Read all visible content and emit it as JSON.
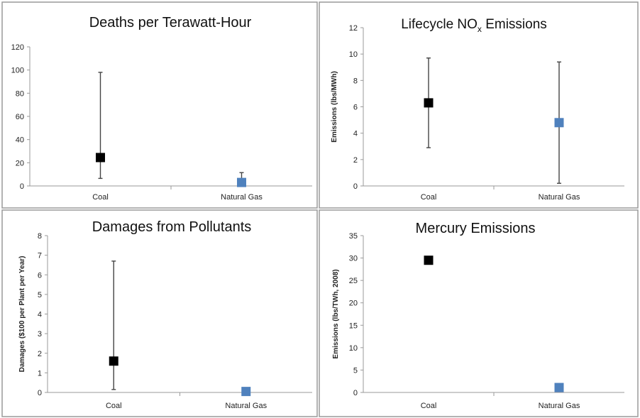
{
  "chart_data": [
    {
      "type": "scatter",
      "title": "Deaths per Terawatt-Hour",
      "title_sub": "",
      "title_after": "",
      "ylabel": "",
      "ylim": [
        0,
        120
      ],
      "yticks": [
        "0",
        "20",
        "40",
        "60",
        "80",
        "100",
        "120"
      ],
      "categories": [
        "Coal",
        "Natural Gas"
      ],
      "values": [
        24.5,
        3
      ],
      "error_low": [
        6.5,
        null
      ],
      "error_high": [
        98,
        11.5
      ],
      "colors": [
        "#000000",
        "#4f81bd"
      ],
      "grid": false
    },
    {
      "type": "scatter",
      "title": "Lifecycle NO",
      "title_sub": "x",
      "title_after": " Emissions",
      "ylabel": "Emissions (lbs/MWh)",
      "ylim": [
        0,
        12
      ],
      "yticks": [
        "0",
        "2",
        "4",
        "6",
        "8",
        "10",
        "12"
      ],
      "categories": [
        "Coal",
        "Natural Gas"
      ],
      "values": [
        6.3,
        4.8
      ],
      "error_low": [
        2.9,
        0.2
      ],
      "error_high": [
        9.7,
        9.4
      ],
      "colors": [
        "#000000",
        "#4f81bd"
      ],
      "grid": false
    },
    {
      "type": "scatter",
      "title": "Damages from Pollutants",
      "title_sub": "",
      "title_after": "",
      "ylabel": "Damages ($100 per Plant per Year)",
      "ylim": [
        0,
        8
      ],
      "yticks": [
        "0",
        "1",
        "2",
        "3",
        "4",
        "5",
        "6",
        "7",
        "8"
      ],
      "categories": [
        "Coal",
        "Natural Gas"
      ],
      "values": [
        1.6,
        0.05
      ],
      "error_low": [
        0.15,
        null
      ],
      "error_high": [
        6.7,
        null
      ],
      "colors": [
        "#000000",
        "#4f81bd"
      ],
      "grid": false
    },
    {
      "type": "scatter",
      "title": "Mercury Emissions",
      "title_sub": "",
      "title_after": "",
      "ylabel": "Emissions (lbs/TWh, 2008)",
      "ylim": [
        0,
        35
      ],
      "yticks": [
        "0",
        "5",
        "10",
        "15",
        "20",
        "25",
        "30",
        "35"
      ],
      "categories": [
        "Coal",
        "Natural Gas"
      ],
      "values": [
        29.5,
        1.1
      ],
      "error_low": [
        null,
        null
      ],
      "error_high": [
        null,
        null
      ],
      "colors": [
        "#000000",
        "#4f81bd"
      ],
      "grid": false
    }
  ]
}
